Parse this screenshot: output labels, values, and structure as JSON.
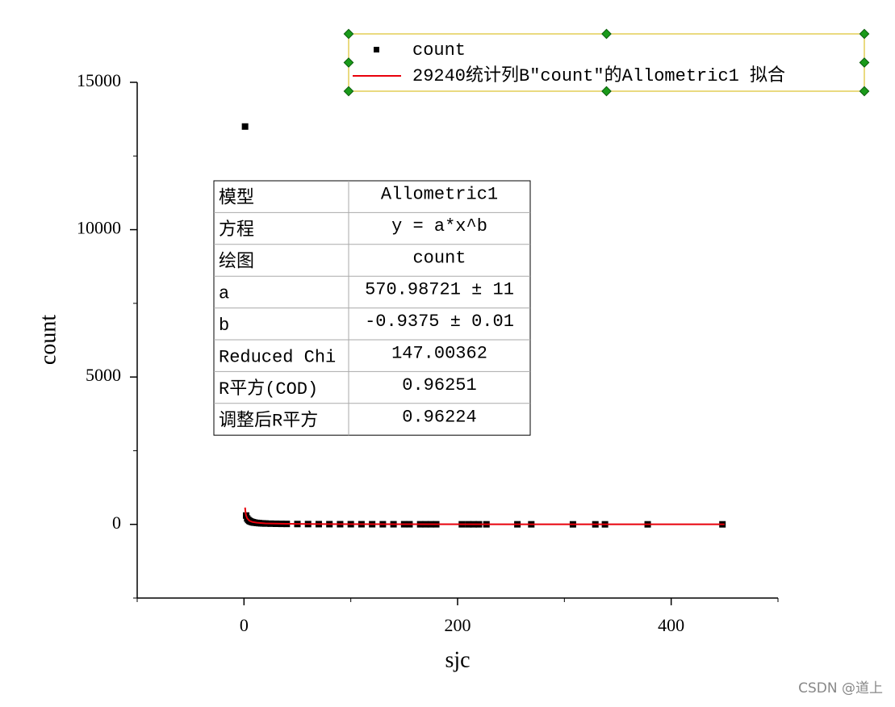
{
  "chart_data": {
    "type": "scatter",
    "x_label": "sjc",
    "y_label": "count",
    "xlim": [
      -100,
      500
    ],
    "ylim": [
      -2500,
      15000
    ],
    "xticks": [
      0,
      200,
      400
    ],
    "yticks": [
      0,
      5000,
      10000,
      15000
    ],
    "grid": false,
    "legend_position": "top-right",
    "series": [
      {
        "name": "count",
        "style": "scatter",
        "color": "#000000",
        "x": [
          1,
          2,
          3,
          4,
          5,
          6,
          7,
          8,
          9,
          10,
          12,
          14,
          16,
          18,
          20,
          25,
          30,
          35,
          40,
          50,
          60,
          70,
          80,
          90,
          100,
          110,
          120,
          130,
          140,
          150,
          155,
          165,
          170,
          175,
          180,
          204,
          210,
          215,
          220,
          227,
          256,
          269,
          308,
          329,
          338,
          378,
          448
        ],
        "values": [
          13500,
          300,
          200,
          150,
          120,
          100,
          85,
          75,
          65,
          58,
          50,
          42,
          36,
          32,
          29,
          24,
          20,
          17,
          15,
          12,
          10,
          8,
          7,
          6,
          6,
          5,
          5,
          4,
          4,
          4,
          4,
          3,
          3,
          3,
          3,
          2,
          2,
          2,
          2,
          2,
          2,
          2,
          1,
          1,
          1,
          1,
          1
        ]
      },
      {
        "name": "29240统计列B″count″的Allometric1 拟合",
        "style": "line",
        "color": "#e8000b",
        "x": [
          1,
          1.5,
          2,
          3,
          5,
          8,
          12,
          20,
          40,
          80,
          150,
          250,
          450
        ],
        "values": [
          571,
          390,
          298,
          204,
          126,
          81,
          56,
          34,
          18,
          9.4,
          5.2,
          3.2,
          1.9
        ]
      }
    ],
    "fit_table": {
      "rows": [
        [
          "模型",
          "Allometric1"
        ],
        [
          "方程",
          "y = a*x^b"
        ],
        [
          "绘图",
          "count"
        ],
        [
          "a",
          "570.98721 ± 11"
        ],
        [
          "b",
          "-0.9375 ± 0.01"
        ],
        [
          "Reduced Chi",
          "147.00362"
        ],
        [
          "R平方(COD)",
          "0.96251"
        ],
        [
          "调整后R平方",
          "0.96224"
        ]
      ]
    },
    "watermark": "CSDN @道上"
  }
}
